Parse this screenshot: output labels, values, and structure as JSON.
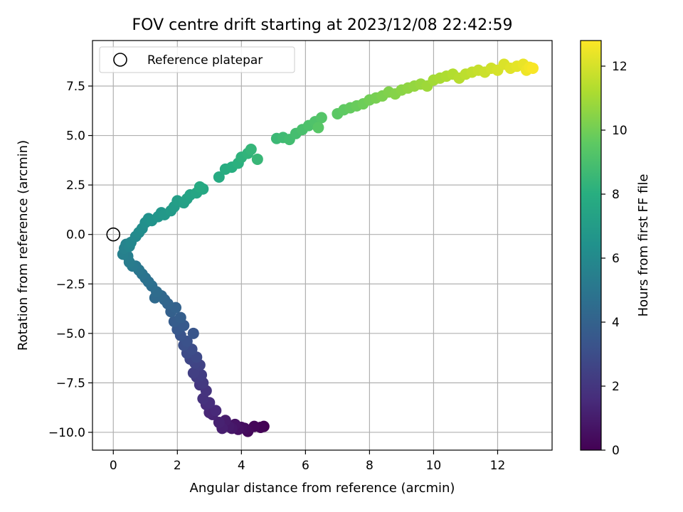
{
  "chart_data": {
    "type": "scatter",
    "title": "FOV centre drift starting at 2023/12/08 22:42:59",
    "xlabel": "Angular distance from reference (arcmin)",
    "ylabel": "Rotation from reference (arcmin)",
    "xlim": [
      -0.65,
      13.7
    ],
    "ylim": [
      -10.9,
      9.8
    ],
    "xticks": [
      0,
      2,
      4,
      6,
      8,
      10,
      12
    ],
    "xtick_labels": [
      "0",
      "2",
      "4",
      "6",
      "8",
      "10",
      "12"
    ],
    "yticks": [
      -10.0,
      -7.5,
      -5.0,
      -2.5,
      0.0,
      2.5,
      5.0,
      7.5
    ],
    "ytick_labels": [
      "−10.0",
      "−7.5",
      "−5.0",
      "−2.5",
      "0.0",
      "2.5",
      "5.0",
      "7.5"
    ],
    "grid": true,
    "legend": {
      "position": "top-left",
      "entries": [
        {
          "label": "Reference platepar",
          "marker": "open-circle"
        }
      ]
    },
    "reference_point": {
      "x": 0,
      "y": 0
    },
    "colorbar": {
      "label": "Hours from first FF file",
      "colormap": "viridis",
      "range": [
        0,
        12.8
      ],
      "ticks": [
        0,
        2,
        4,
        6,
        8,
        10,
        12
      ],
      "tick_labels": [
        "0",
        "2",
        "4",
        "6",
        "8",
        "10",
        "12"
      ]
    },
    "series": [
      {
        "columns": [
          "x",
          "y",
          "hours"
        ],
        "points": [
          [
            4.7,
            -9.7,
            0.0
          ],
          [
            4.6,
            -9.75,
            0.1
          ],
          [
            4.4,
            -9.7,
            0.2
          ],
          [
            4.2,
            -9.95,
            0.3
          ],
          [
            4.1,
            -9.8,
            0.4
          ],
          [
            4.0,
            -9.75,
            0.5
          ],
          [
            3.9,
            -9.85,
            0.6
          ],
          [
            3.8,
            -9.6,
            0.7
          ],
          [
            3.7,
            -9.8,
            0.8
          ],
          [
            3.6,
            -9.7,
            0.9
          ],
          [
            3.5,
            -9.4,
            1.0
          ],
          [
            3.4,
            -9.8,
            1.1
          ],
          [
            3.3,
            -9.5,
            1.2
          ],
          [
            3.1,
            -9.1,
            1.3
          ],
          [
            3.0,
            -9.0,
            1.4
          ],
          [
            3.2,
            -8.9,
            1.5
          ],
          [
            2.9,
            -8.6,
            1.6
          ],
          [
            3.0,
            -8.5,
            1.7
          ],
          [
            2.8,
            -8.3,
            1.8
          ],
          [
            2.9,
            -7.9,
            1.9
          ],
          [
            2.7,
            -7.6,
            2.0
          ],
          [
            2.8,
            -7.5,
            2.1
          ],
          [
            2.6,
            -7.2,
            2.2
          ],
          [
            2.75,
            -7.1,
            2.3
          ],
          [
            2.5,
            -7.0,
            2.4
          ],
          [
            2.7,
            -6.6,
            2.5
          ],
          [
            2.55,
            -6.5,
            2.6
          ],
          [
            2.4,
            -6.3,
            2.7
          ],
          [
            2.6,
            -6.2,
            2.8
          ],
          [
            2.3,
            -6.0,
            2.9
          ],
          [
            2.45,
            -5.8,
            3.0
          ],
          [
            2.2,
            -5.6,
            3.1
          ],
          [
            2.3,
            -5.4,
            3.2
          ],
          [
            2.1,
            -5.1,
            3.3
          ],
          [
            2.5,
            -5.0,
            3.4
          ],
          [
            2.0,
            -4.8,
            3.5
          ],
          [
            2.2,
            -4.6,
            3.6
          ],
          [
            1.9,
            -4.4,
            3.7
          ],
          [
            2.1,
            -4.2,
            3.8
          ],
          [
            1.8,
            -3.9,
            3.9
          ],
          [
            1.95,
            -3.7,
            4.0
          ],
          [
            1.7,
            -3.5,
            4.1
          ],
          [
            1.6,
            -3.3,
            4.2
          ],
          [
            1.5,
            -3.1,
            4.3
          ],
          [
            1.3,
            -3.2,
            4.4
          ],
          [
            1.35,
            -2.9,
            4.5
          ],
          [
            1.2,
            -2.6,
            4.6
          ],
          [
            1.1,
            -2.4,
            4.7
          ],
          [
            1.0,
            -2.2,
            4.8
          ],
          [
            0.9,
            -2.0,
            4.9
          ],
          [
            0.8,
            -1.8,
            5.0
          ],
          [
            0.7,
            -1.6,
            5.1
          ],
          [
            0.6,
            -1.6,
            5.2
          ],
          [
            0.5,
            -1.4,
            5.3
          ],
          [
            0.45,
            -1.1,
            5.4
          ],
          [
            0.3,
            -1.0,
            5.5
          ],
          [
            0.35,
            -0.7,
            5.6
          ],
          [
            0.4,
            -0.5,
            5.7
          ],
          [
            0.5,
            -0.6,
            5.8
          ],
          [
            0.55,
            -0.4,
            5.9
          ],
          [
            0.7,
            -0.1,
            6.0
          ],
          [
            0.8,
            0.1,
            6.1
          ],
          [
            0.9,
            0.3,
            6.2
          ],
          [
            1.0,
            0.6,
            6.3
          ],
          [
            1.1,
            0.8,
            6.4
          ],
          [
            1.2,
            0.7,
            6.5
          ],
          [
            1.4,
            0.9,
            6.6
          ],
          [
            1.5,
            1.1,
            6.7
          ],
          [
            1.6,
            1.0,
            6.8
          ],
          [
            1.8,
            1.2,
            6.9
          ],
          [
            1.9,
            1.4,
            7.0
          ],
          [
            2.0,
            1.7,
            7.1
          ],
          [
            2.2,
            1.6,
            7.2
          ],
          [
            2.3,
            1.8,
            7.3
          ],
          [
            2.4,
            2.0,
            7.4
          ],
          [
            2.6,
            2.1,
            7.5
          ],
          [
            2.8,
            2.3,
            7.6
          ],
          [
            2.7,
            2.4,
            7.7
          ],
          [
            3.3,
            2.9,
            7.8
          ],
          [
            3.5,
            3.3,
            7.9
          ],
          [
            3.7,
            3.4,
            8.0
          ],
          [
            3.9,
            3.6,
            8.1
          ],
          [
            4.0,
            3.9,
            8.2
          ],
          [
            4.2,
            4.1,
            8.3
          ],
          [
            4.3,
            4.3,
            8.4
          ],
          [
            4.5,
            3.8,
            8.5
          ],
          [
            5.1,
            4.85,
            8.6
          ],
          [
            5.3,
            4.9,
            8.7
          ],
          [
            5.5,
            4.8,
            8.8
          ],
          [
            5.7,
            5.1,
            8.9
          ],
          [
            5.9,
            5.3,
            9.0
          ],
          [
            6.1,
            5.5,
            9.1
          ],
          [
            6.3,
            5.7,
            9.2
          ],
          [
            6.5,
            5.9,
            9.3
          ],
          [
            6.4,
            5.4,
            9.4
          ],
          [
            7.0,
            6.1,
            9.5
          ],
          [
            7.2,
            6.3,
            9.6
          ],
          [
            7.4,
            6.4,
            9.7
          ],
          [
            7.6,
            6.5,
            9.8
          ],
          [
            7.8,
            6.6,
            9.9
          ],
          [
            8.0,
            6.8,
            10.0
          ],
          [
            8.2,
            6.9,
            10.1
          ],
          [
            8.4,
            7.0,
            10.2
          ],
          [
            8.6,
            7.2,
            10.3
          ],
          [
            8.8,
            7.1,
            10.4
          ],
          [
            9.0,
            7.3,
            10.5
          ],
          [
            9.2,
            7.4,
            10.6
          ],
          [
            9.4,
            7.5,
            10.7
          ],
          [
            9.6,
            7.6,
            10.8
          ],
          [
            9.8,
            7.5,
            10.9
          ],
          [
            10.0,
            7.8,
            11.0
          ],
          [
            10.2,
            7.9,
            11.1
          ],
          [
            10.4,
            8.0,
            11.2
          ],
          [
            10.6,
            8.1,
            11.3
          ],
          [
            10.8,
            7.9,
            11.4
          ],
          [
            11.0,
            8.1,
            11.5
          ],
          [
            11.2,
            8.2,
            11.6
          ],
          [
            11.4,
            8.3,
            11.7
          ],
          [
            11.6,
            8.2,
            11.8
          ],
          [
            11.8,
            8.4,
            11.9
          ],
          [
            12.0,
            8.3,
            12.0
          ],
          [
            12.2,
            8.6,
            12.1
          ],
          [
            12.4,
            8.4,
            12.2
          ],
          [
            12.6,
            8.5,
            12.3
          ],
          [
            12.8,
            8.6,
            12.4
          ],
          [
            12.9,
            8.3,
            12.5
          ],
          [
            13.0,
            8.45,
            12.6
          ],
          [
            13.1,
            8.4,
            12.7
          ]
        ]
      }
    ]
  }
}
